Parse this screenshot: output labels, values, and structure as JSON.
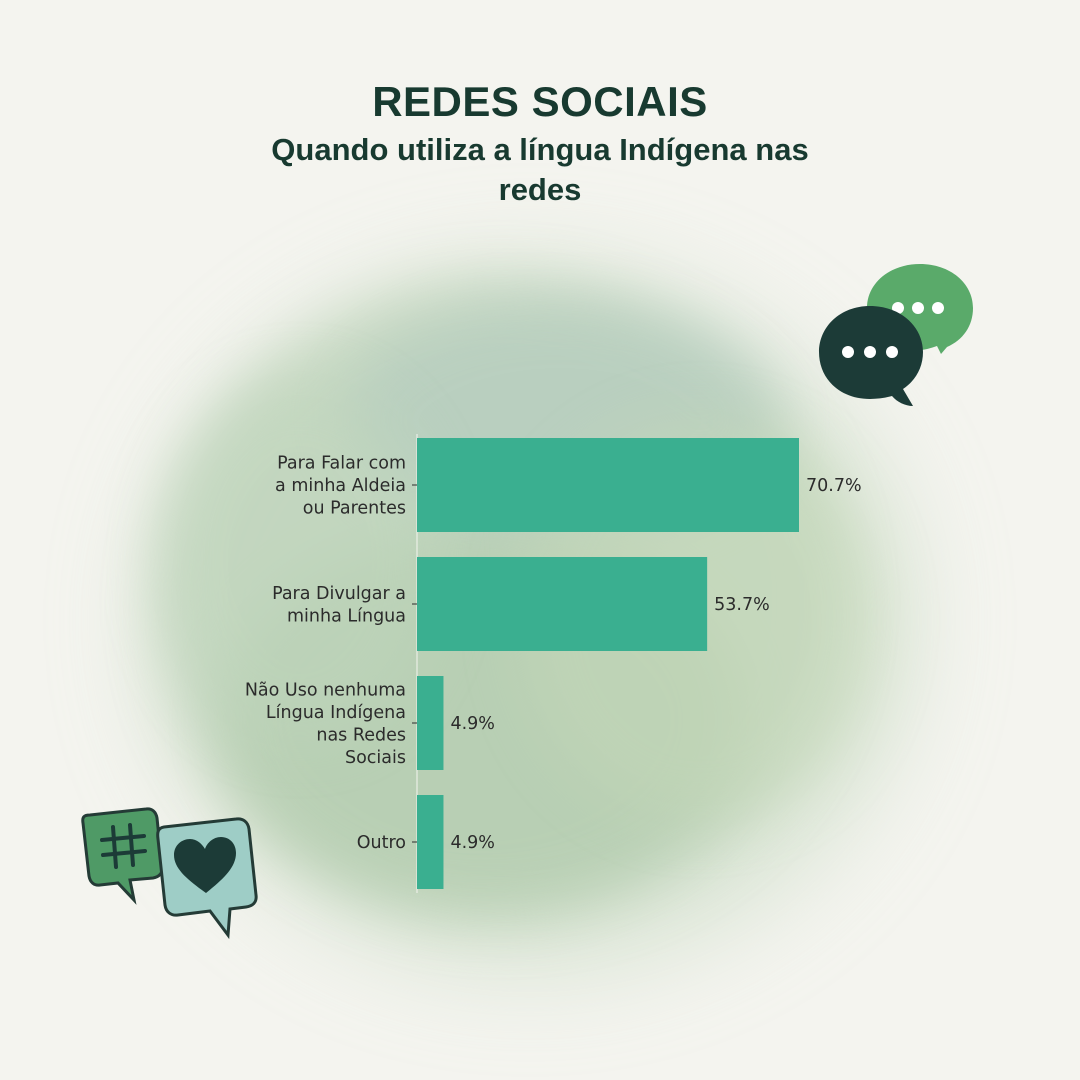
{
  "header": {
    "title": "REDES SOCIAIS",
    "subtitle": "Quando utiliza a língua Indígena nas redes"
  },
  "chart_data": {
    "type": "bar",
    "orientation": "horizontal",
    "title": "",
    "xlabel": "",
    "ylabel": "",
    "categories": [
      [
        "Para Falar com",
        "a minha Aldeia",
        "ou Parentes"
      ],
      [
        "Para Divulgar a",
        "minha Língua"
      ],
      [
        "Não Uso nenhuma",
        "Língua Indígena",
        "nas Redes",
        "Sociais"
      ],
      [
        "Outro"
      ]
    ],
    "values": [
      70.7,
      53.7,
      4.9,
      4.9
    ],
    "value_labels": [
      "70.7%",
      "53.7%",
      "4.9%",
      "4.9%"
    ],
    "xlim": [
      0,
      75
    ],
    "grid": false,
    "bar_color": "#3aaf90"
  },
  "decor": {
    "speech_bubbles_icon": "chat-bubbles-icon",
    "hashtag_heart_icon": "hashtag-heart-icon",
    "colors": {
      "dark": "#1c3b37",
      "green": "#5aaa6a",
      "mint": "#9ecdc6",
      "title": "#183a30"
    }
  }
}
